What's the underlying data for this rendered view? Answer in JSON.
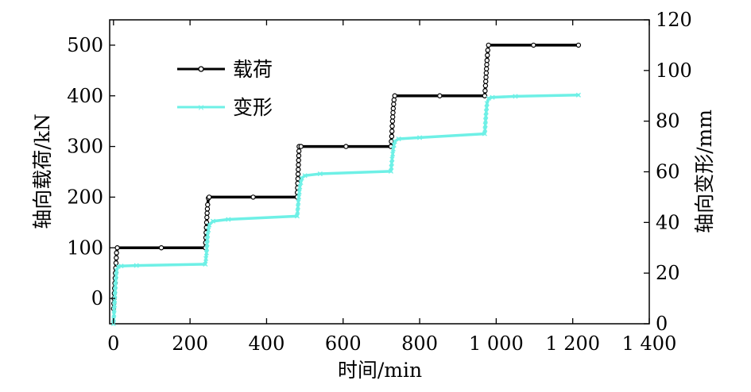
{
  "chart_data": {
    "type": "line",
    "title": "",
    "xlabel": "时间/min",
    "ylabel_left": "轴向载荷/kN",
    "ylabel_right": "轴向变形/mm",
    "xlim": [
      -10,
      1400
    ],
    "ylim_left": [
      -50,
      550
    ],
    "ylim_right": [
      0,
      120
    ],
    "x_ticks": [
      0,
      200,
      400,
      600,
      800,
      1000,
      1200,
      1400
    ],
    "x_tick_labels": [
      "0",
      "200",
      "400",
      "600",
      "800",
      "1 000",
      "1 200",
      "1 400"
    ],
    "y_left_ticks": [
      0,
      100,
      200,
      300,
      400,
      500
    ],
    "y_left_tick_labels": [
      "0",
      "100",
      "200",
      "300",
      "400",
      "500"
    ],
    "y_right_ticks": [
      0,
      20,
      40,
      60,
      80,
      100,
      120
    ],
    "y_right_tick_labels": [
      "0",
      "20",
      "40",
      "60",
      "80",
      "100",
      "120"
    ],
    "grid": false,
    "legend_position": "top-left",
    "series": [
      {
        "name": "载荷",
        "axis": "left",
        "color": "#000000",
        "marker": "circle",
        "x": [
          0,
          5,
          8,
          10,
          240,
          242,
          244,
          246,
          248,
          250,
          480,
          485,
          490,
          725,
          727,
          729,
          731,
          733,
          735,
          970,
          972,
          974,
          976,
          978,
          980,
          1215
        ],
        "y": [
          -20,
          50,
          90,
          100,
          100,
          130,
          160,
          185,
          198,
          200,
          200,
          300,
          300,
          300,
          320,
          350,
          375,
          392,
          400,
          400,
          420,
          445,
          470,
          490,
          500,
          500
        ]
      },
      {
        "name": "变形",
        "axis": "right",
        "color": "#6ef0e6",
        "marker": "x",
        "x": [
          0,
          5,
          8,
          12,
          20,
          60,
          240,
          243,
          246,
          250,
          260,
          300,
          480,
          483,
          487,
          492,
          500,
          540,
          725,
          728,
          731,
          735,
          745,
          800,
          970,
          973,
          976,
          980,
          990,
          1050,
          1215
        ],
        "y": [
          0,
          15,
          21,
          22.6,
          22.8,
          23,
          23.5,
          28,
          35,
          39,
          40.5,
          41.2,
          42.5,
          48,
          54,
          57.5,
          58.5,
          59.2,
          60.2,
          65,
          69,
          72,
          73,
          73.5,
          75,
          82,
          87,
          89,
          89.4,
          89.8,
          90.3
        ]
      }
    ]
  }
}
